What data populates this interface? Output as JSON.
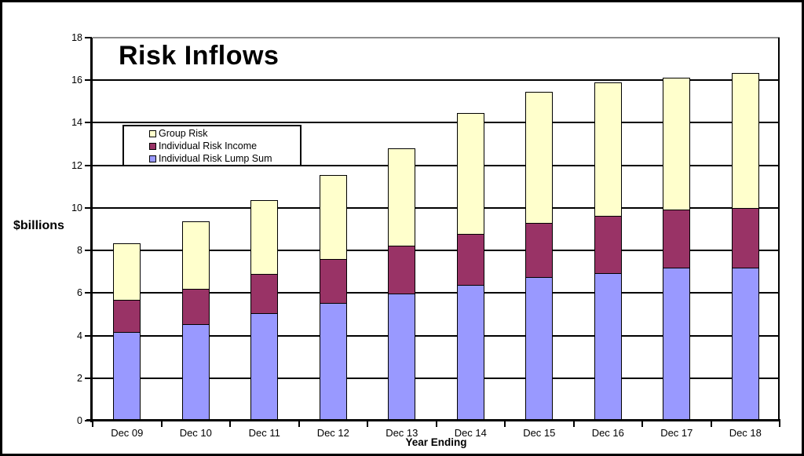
{
  "chart_data": {
    "type": "bar",
    "stacked": true,
    "title": "Risk Inflows",
    "xlabel": "Year Ending",
    "ylabel": "$billions",
    "ylim": [
      0,
      18
    ],
    "ytick_interval": 2,
    "grid": true,
    "gridline_color": "#000000",
    "top_gridline_color": "#8c8c8c",
    "categories": [
      "Dec 09",
      "Dec 10",
      "Dec 11",
      "Dec 12",
      "Dec 13",
      "Dec 14",
      "Dec 15",
      "Dec 16",
      "Dec 17",
      "Dec 18"
    ],
    "series": [
      {
        "name": "Individual Risk Lump Sum",
        "color": "#9999FF",
        "values": [
          4.15,
          4.5,
          5.0,
          5.5,
          5.95,
          6.35,
          6.7,
          6.9,
          7.15,
          7.15
        ]
      },
      {
        "name": "Individual Risk Income",
        "color": "#993366",
        "values": [
          1.5,
          1.65,
          1.85,
          2.05,
          2.25,
          2.4,
          2.55,
          2.7,
          2.75,
          2.8
        ]
      },
      {
        "name": "Group Risk",
        "color": "#FFFFCC",
        "values": [
          2.65,
          3.15,
          3.45,
          3.95,
          4.55,
          5.65,
          6.15,
          6.25,
          6.15,
          6.35
        ]
      }
    ],
    "totals": [
      8.3,
      9.3,
      10.3,
      11.5,
      12.75,
      14.4,
      15.4,
      15.85,
      16.05,
      16.3
    ],
    "legend": {
      "position": "upper-left-inside",
      "entries": [
        {
          "label": "Group Risk",
          "color": "#FFFFCC"
        },
        {
          "label": "Individual Risk Income",
          "color": "#993366"
        },
        {
          "label": "Individual Risk Lump Sum",
          "color": "#9999FF"
        }
      ]
    }
  }
}
